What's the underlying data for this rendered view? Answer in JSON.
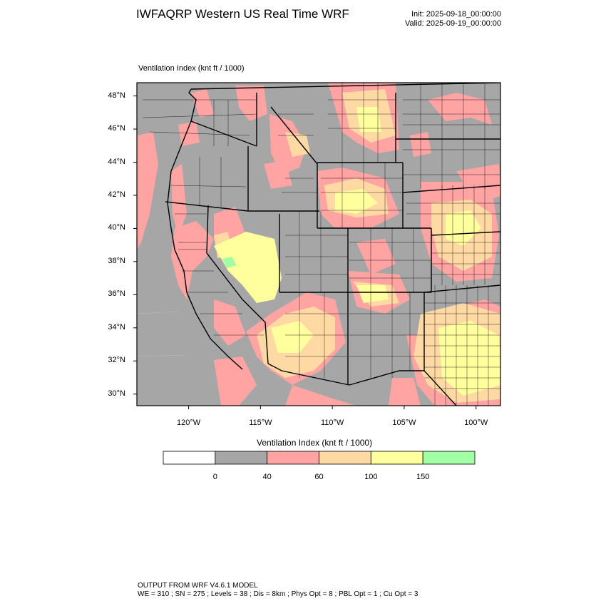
{
  "header": {
    "title": "IWFAQRP Western US Real Time WRF",
    "init": "Init: 2025-09-18_00:00:00",
    "valid": "Valid: 2025-09-19_00:00:00"
  },
  "map": {
    "field_label": "Ventilation Index   (knt ft / 1000)",
    "lat_labels": [
      "48°N",
      "46°N",
      "44°N",
      "42°N",
      "40°N",
      "38°N",
      "36°N",
      "34°N",
      "32°N",
      "30°N"
    ],
    "lat_values": [
      48,
      46,
      44,
      42,
      40,
      38,
      36,
      34,
      32,
      30
    ],
    "lon_labels": [
      "120°W",
      "115°W",
      "110°W",
      "105°W",
      "100°W"
    ],
    "lon_values": [
      -120,
      -115,
      -110,
      -105,
      -100
    ],
    "lon_range": [
      -123.6,
      -98.3
    ],
    "lat_range": [
      29.3,
      48.8
    ],
    "colors": {
      "c0": "#ffffff",
      "c1": "#a6a6a6",
      "c2": "#ffa3a3",
      "c3": "#ffd9a3",
      "c4": "#ffff9e",
      "c5": "#a3ffa3",
      "border": "#000000"
    }
  },
  "colorbar": {
    "title": "Ventilation Index   (knt ft / 1000)",
    "labels": [
      "0",
      "40",
      "60",
      "100",
      "150"
    ],
    "bins": [
      "#ffffff",
      "#a6a6a6",
      "#ffa3a3",
      "#ffd9a3",
      "#ffff9e",
      "#a3ffa3"
    ]
  },
  "footer": {
    "line1": "OUTPUT FROM WRF V4.6.1 MODEL",
    "line2": "WE = 310 ; SN = 275 ; Levels = 38 ; Dis = 8km ; Phys Opt = 8 ; PBL Opt = 1 ; Cu Opt = 3"
  }
}
